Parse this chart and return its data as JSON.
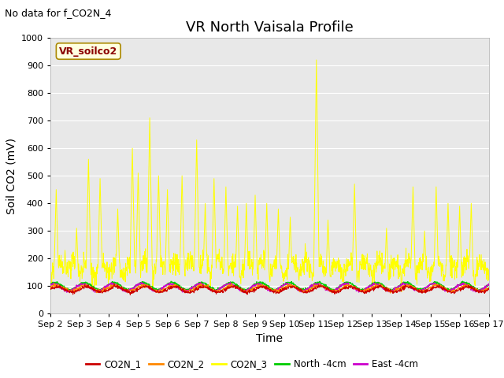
{
  "title": "VR North Vaisala Profile",
  "subtitle": "No data for f_CO2N_4",
  "ylabel": "Soil CO2 (mV)",
  "xlabel": "Time",
  "annotation_box": "VR_soilco2",
  "ylim": [
    0,
    1000
  ],
  "xlim": [
    2,
    17
  ],
  "x_tick_positions": [
    2,
    3,
    4,
    5,
    6,
    7,
    8,
    9,
    10,
    11,
    12,
    13,
    14,
    15,
    16,
    17
  ],
  "x_tick_labels": [
    "Sep 2",
    "Sep 3",
    "Sep 4",
    "Sep 5",
    "Sep 6",
    "Sep 7",
    "Sep 8",
    "Sep 9",
    "Sep 10",
    "Sep 11",
    "Sep 12",
    "Sep 13",
    "Sep 14",
    "Sep 15",
    "Sep 16",
    "Sep 17"
  ],
  "y_tick_positions": [
    0,
    100,
    200,
    300,
    400,
    500,
    600,
    700,
    800,
    900,
    1000
  ],
  "fig_bg_color": "#ffffff",
  "plot_bg_color": "#e8e8e8",
  "grid_color": "#ffffff",
  "legend_entries": [
    "CO2N_1",
    "CO2N_2",
    "CO2N_3",
    "North -4cm",
    "East -4cm"
  ],
  "legend_colors": [
    "#cc0000",
    "#ff8800",
    "#ffff00",
    "#00cc00",
    "#cc00cc"
  ],
  "line_colors": {
    "CO2N_1": "#cc0000",
    "CO2N_2": "#ff8800",
    "CO2N_3": "#ffff00",
    "North": "#00cc00",
    "East": "#cc00cc"
  },
  "title_fontsize": 13,
  "label_fontsize": 10,
  "tick_fontsize": 8,
  "subtitle_fontsize": 9,
  "annot_fontsize": 9
}
